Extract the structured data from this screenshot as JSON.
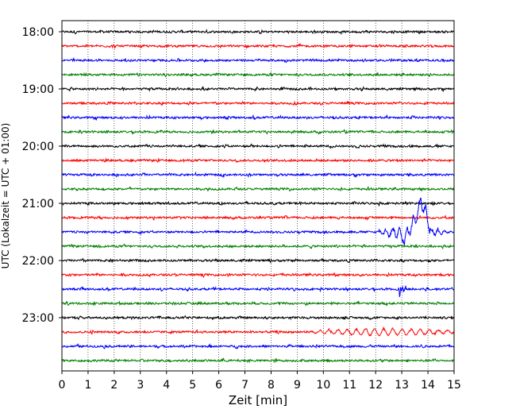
{
  "chart_data": {
    "type": "line",
    "title": "",
    "xlabel": "Zeit  [min]",
    "ylabel": "UTC (Lokalzeit = UTC + 01:00)",
    "xlim": [
      0,
      15
    ],
    "x_ticks": [
      0,
      1,
      2,
      3,
      4,
      5,
      6,
      7,
      8,
      9,
      10,
      11,
      12,
      13,
      14,
      15
    ],
    "x_tick_labels": [
      "0",
      "1",
      "2",
      "3",
      "4",
      "5",
      "6",
      "7",
      "8",
      "9",
      "10",
      "11",
      "12",
      "13",
      "14",
      "15"
    ],
    "y_tick_labels": [
      "18:00",
      "19:00",
      "20:00",
      "21:00",
      "22:00",
      "23:00"
    ],
    "minutes_per_trace": 15,
    "grid": "vertical dotted at each minute",
    "color_cycle": [
      "#000000",
      "#ff0000",
      "#0000ff",
      "#008000"
    ],
    "traces": [
      {
        "start": "18:00",
        "color": "#000000"
      },
      {
        "start": "18:15",
        "color": "#ff0000"
      },
      {
        "start": "18:30",
        "color": "#0000ff"
      },
      {
        "start": "18:45",
        "color": "#008000"
      },
      {
        "start": "19:00",
        "color": "#000000"
      },
      {
        "start": "19:15",
        "color": "#ff0000"
      },
      {
        "start": "19:30",
        "color": "#0000ff"
      },
      {
        "start": "19:45",
        "color": "#008000"
      },
      {
        "start": "20:00",
        "color": "#000000"
      },
      {
        "start": "20:15",
        "color": "#ff0000"
      },
      {
        "start": "20:30",
        "color": "#0000ff"
      },
      {
        "start": "20:45",
        "color": "#008000"
      },
      {
        "start": "21:00",
        "color": "#000000"
      },
      {
        "start": "21:15",
        "color": "#ff0000"
      },
      {
        "start": "21:30",
        "color": "#0000ff",
        "event": {
          "from": 12.0,
          "to": 15.0,
          "strength": "moderate"
        }
      },
      {
        "start": "21:45",
        "color": "#008000"
      },
      {
        "start": "22:00",
        "color": "#000000"
      },
      {
        "start": "22:15",
        "color": "#ff0000"
      },
      {
        "start": "22:30",
        "color": "#0000ff",
        "event": {
          "from": 12.9,
          "to": 13.8,
          "strength": "spike"
        }
      },
      {
        "start": "22:45",
        "color": "#008000"
      },
      {
        "start": "23:00",
        "color": "#000000"
      },
      {
        "start": "23:15",
        "color": "#ff0000",
        "event": {
          "from": 9.5,
          "to": 15.0,
          "strength": "waves"
        }
      },
      {
        "start": "23:30",
        "color": "#0000ff"
      },
      {
        "start": "23:45",
        "color": "#008000"
      }
    ]
  }
}
